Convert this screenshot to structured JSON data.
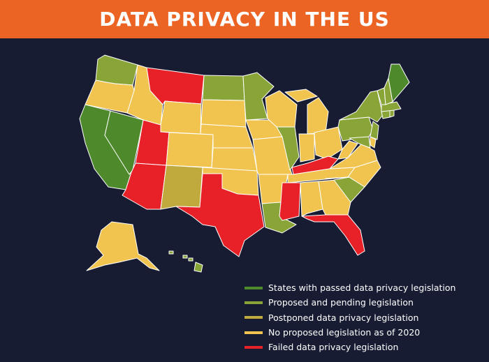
{
  "header": {
    "title": "DATA PRIVACY IN THE US"
  },
  "colors": {
    "passed": "#4e8a2b",
    "proposed": "#8aa537",
    "postponed": "#c0aa3e",
    "none": "#f1c450",
    "failed": "#e82128"
  },
  "legend": [
    {
      "key": "passed",
      "label": "States with passed data privacy legislation"
    },
    {
      "key": "proposed",
      "label": "Proposed and pending legislation"
    },
    {
      "key": "postponed",
      "label": "Postponed data privacy legislation"
    },
    {
      "key": "none",
      "label": "No proposed legislation as of 2020"
    },
    {
      "key": "failed",
      "label": "Failed data privacy legislation"
    }
  ],
  "states": {
    "WA": "proposed",
    "OR": "none",
    "CA": "passed",
    "NV": "passed",
    "ID": "none",
    "MT": "failed",
    "WY": "none",
    "UT": "failed",
    "AZ": "failed",
    "CO": "none",
    "NM": "postponed",
    "ND": "proposed",
    "SD": "none",
    "NE": "none",
    "KS": "none",
    "OK": "none",
    "TX": "failed",
    "MN": "proposed",
    "IA": "none",
    "MO": "none",
    "AR": "none",
    "LA": "proposed",
    "WI": "none",
    "IL": "proposed",
    "MI": "none",
    "IN": "none",
    "OH": "none",
    "KY": "failed",
    "TN": "none",
    "MS": "failed",
    "AL": "none",
    "GA": "none",
    "FL": "failed",
    "SC": "proposed",
    "NC": "none",
    "VA": "none",
    "WV": "none",
    "PA": "proposed",
    "NY": "proposed",
    "NJ": "proposed",
    "DE": "none",
    "MD": "proposed",
    "CT": "proposed",
    "RI": "proposed",
    "MA": "proposed",
    "VT": "proposed",
    "NH": "proposed",
    "ME": "passed",
    "AK": "none",
    "HI": "proposed"
  }
}
